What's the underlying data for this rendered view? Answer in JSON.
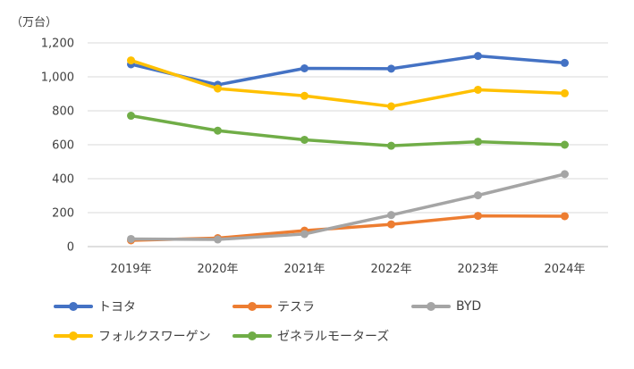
{
  "chart_data": {
    "type": "line",
    "unit_label": "（万台）",
    "categories": [
      "2019年",
      "2020年",
      "2021年",
      "2022年",
      "2023年",
      "2024年"
    ],
    "y_ticks": [
      "0",
      "200",
      "400",
      "600",
      "800",
      "1,000",
      "1,200"
    ],
    "ylim": [
      0,
      1200
    ],
    "grid": true,
    "legend_position": "bottom",
    "series": [
      {
        "name": "トヨタ",
        "color": "#4472C4",
        "values": [
          1074,
          953,
          1050,
          1048,
          1123,
          1082
        ]
      },
      {
        "name": "テスラ",
        "color": "#ED7D31",
        "values": [
          37,
          50,
          94,
          131,
          181,
          179
        ]
      },
      {
        "name": "BYD",
        "color": "#A5A5A5",
        "values": [
          45,
          42,
          74,
          186,
          302,
          427
        ]
      },
      {
        "name": "フォルクスワーゲン",
        "color": "#FFC000",
        "values": [
          1097,
          931,
          888,
          826,
          924,
          903
        ]
      },
      {
        "name": "ゼネラルモーターズ",
        "color": "#70AD47",
        "values": [
          771,
          683,
          629,
          594,
          618,
          600
        ]
      }
    ]
  }
}
